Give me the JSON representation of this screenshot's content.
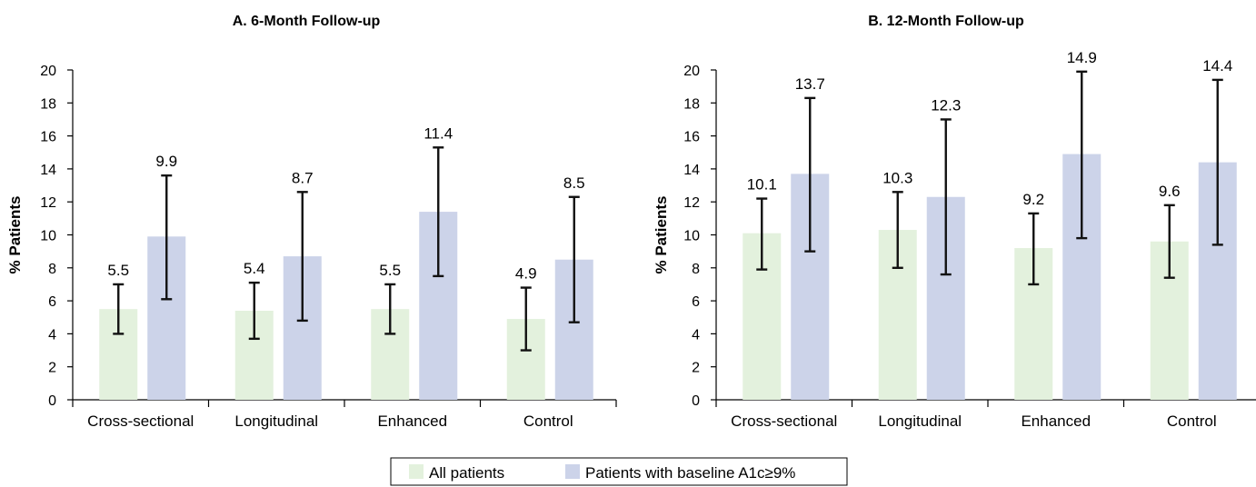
{
  "legend": {
    "items": [
      {
        "label": "All patients",
        "color": "#e3f1dd"
      },
      {
        "label": "Patients with baseline A1c≥9%",
        "color": "#ccd3e9"
      }
    ]
  },
  "chart_data": [
    {
      "type": "bar",
      "title": "A. 6-Month Follow-up",
      "xlabel": "",
      "ylabel": "% Patients",
      "ylim": [
        0,
        20
      ],
      "yticks": [
        0,
        2,
        4,
        6,
        8,
        10,
        12,
        14,
        16,
        18,
        20
      ],
      "grid": false,
      "categories": [
        "Cross-sectional",
        "Longitudinal",
        "Enhanced",
        "Control"
      ],
      "series": [
        {
          "name": "All patients",
          "color": "#e3f1dd",
          "values": [
            5.5,
            5.4,
            5.5,
            4.9
          ],
          "error_low": [
            4.0,
            3.7,
            4.0,
            3.0
          ],
          "error_high": [
            7.0,
            7.1,
            7.0,
            6.8
          ]
        },
        {
          "name": "Patients with baseline A1c≥9%",
          "color": "#ccd3e9",
          "values": [
            9.9,
            8.7,
            11.4,
            8.5
          ],
          "error_low": [
            6.1,
            4.8,
            7.5,
            4.7
          ],
          "error_high": [
            13.6,
            12.6,
            15.3,
            12.3
          ]
        }
      ]
    },
    {
      "type": "bar",
      "title": "B. 12-Month Follow-up",
      "xlabel": "",
      "ylabel": "% Patients",
      "ylim": [
        0,
        20
      ],
      "yticks": [
        0,
        2,
        4,
        6,
        8,
        10,
        12,
        14,
        16,
        18,
        20
      ],
      "grid": false,
      "categories": [
        "Cross-sectional",
        "Longitudinal",
        "Enhanced",
        "Control"
      ],
      "series": [
        {
          "name": "All patients",
          "color": "#e3f1dd",
          "values": [
            10.1,
            10.3,
            9.2,
            9.6
          ],
          "error_low": [
            7.9,
            8.0,
            7.0,
            7.4
          ],
          "error_high": [
            12.2,
            12.6,
            11.3,
            11.8
          ]
        },
        {
          "name": "Patients with baseline A1c≥9%",
          "color": "#ccd3e9",
          "values": [
            13.7,
            12.3,
            14.9,
            14.4
          ],
          "error_low": [
            9.0,
            7.6,
            9.8,
            9.4
          ],
          "error_high": [
            18.3,
            17.0,
            19.9,
            19.4
          ]
        }
      ]
    }
  ]
}
